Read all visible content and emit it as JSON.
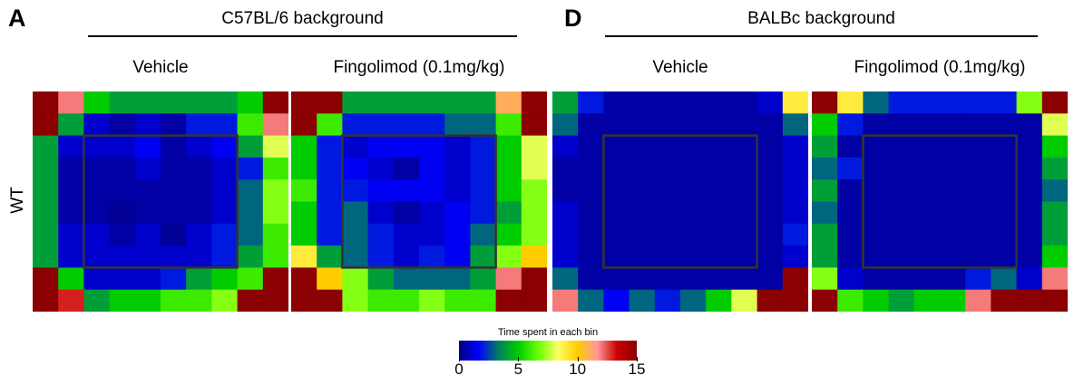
{
  "panels": [
    {
      "letter": "A",
      "title": "C57BL/6 background"
    },
    {
      "letter": "D",
      "title": "BALBc background"
    }
  ],
  "conditions": [
    "Vehicle",
    "Fingolimod (0.1mg/kg)",
    "Vehicle",
    "Fingolimod (0.1mg/kg)"
  ],
  "row_label": "WT",
  "colorbar": {
    "title": "Time spent in each bin",
    "ticks": [
      0,
      5,
      10,
      15
    ],
    "range": [
      0,
      15
    ],
    "stops": [
      "#00007f",
      "#0000ff",
      "#007f5f",
      "#00cc00",
      "#66ff00",
      "#ffff66",
      "#ffcc00",
      "#ff9999",
      "#cc0000",
      "#8b0000"
    ]
  },
  "chart_data": [
    {
      "type": "heatmap",
      "background": "C57BL/6 background",
      "condition": "Vehicle",
      "row": "WT",
      "vmin": 0,
      "vmax": 15,
      "values": [
        [
          15,
          12,
          5,
          4,
          4,
          4,
          4,
          4,
          5,
          15
        ],
        [
          15,
          4,
          1,
          0.5,
          1,
          0.5,
          2,
          2,
          6,
          12
        ],
        [
          4,
          1,
          1,
          1,
          1.5,
          0.5,
          1,
          1.5,
          4,
          8
        ],
        [
          4,
          0.5,
          0.5,
          0.5,
          1,
          0.5,
          0.5,
          1,
          2,
          6
        ],
        [
          4,
          0.5,
          0.5,
          0.5,
          0.5,
          0.5,
          0.5,
          1,
          3,
          7
        ],
        [
          4,
          0.5,
          0.5,
          0.3,
          0.5,
          0.5,
          0.5,
          1,
          3,
          7
        ],
        [
          4,
          1,
          1,
          0.5,
          1,
          0.3,
          1,
          2,
          3,
          6
        ],
        [
          4,
          1,
          1,
          1,
          1,
          1,
          1,
          2,
          4,
          6
        ],
        [
          15,
          5,
          1,
          1,
          1,
          2,
          4,
          5,
          6,
          15
        ],
        [
          15,
          13,
          4,
          5,
          5,
          6,
          6,
          7,
          15,
          15
        ]
      ]
    },
    {
      "type": "heatmap",
      "background": "C57BL/6 background",
      "condition": "Fingolimod (0.1mg/kg)",
      "row": "WT",
      "vmin": 0,
      "vmax": 15,
      "values": [
        [
          15,
          15,
          4,
          4,
          4,
          4,
          4,
          4,
          11,
          15
        ],
        [
          15,
          6,
          2,
          2,
          2,
          2,
          3,
          3,
          6,
          15
        ],
        [
          5,
          2,
          1,
          1.5,
          1.5,
          1.5,
          1,
          2,
          5,
          8
        ],
        [
          5,
          2,
          1.5,
          1,
          0.5,
          1.5,
          1,
          2,
          5,
          8
        ],
        [
          6,
          2,
          2,
          1.5,
          1.5,
          1.5,
          1,
          2,
          5,
          7
        ],
        [
          5,
          2,
          3,
          1,
          0.5,
          1,
          1.5,
          2,
          4,
          7
        ],
        [
          5,
          2,
          3,
          2,
          1,
          1,
          1.5,
          3,
          5,
          7
        ],
        [
          9,
          4,
          3,
          2,
          1,
          2,
          1.5,
          4,
          7,
          10
        ],
        [
          15,
          10,
          7,
          4,
          3,
          3,
          3,
          4,
          12,
          15
        ],
        [
          15,
          15,
          7,
          6,
          6,
          7,
          6,
          6,
          15,
          15
        ]
      ]
    },
    {
      "type": "heatmap",
      "background": "BALBc background",
      "condition": "Vehicle",
      "row": "WT",
      "vmin": 0,
      "vmax": 15,
      "values": [
        [
          4,
          2,
          0.5,
          0.5,
          0.5,
          0.5,
          0.5,
          0.5,
          1,
          9
        ],
        [
          3,
          0.5,
          0.5,
          0.5,
          0.5,
          0.5,
          0.5,
          0.5,
          0.5,
          3
        ],
        [
          1,
          0.5,
          0.5,
          0.5,
          0.5,
          0.5,
          0.5,
          0.5,
          0.5,
          1
        ],
        [
          0.5,
          0.5,
          0.5,
          0.5,
          0.5,
          0.5,
          0.5,
          0.5,
          0.5,
          1
        ],
        [
          0.5,
          0.5,
          0.5,
          0.5,
          0.5,
          0.5,
          0.5,
          0.5,
          0.5,
          1
        ],
        [
          1,
          0.5,
          0.5,
          0.5,
          0.5,
          0.5,
          0.5,
          0.5,
          0.5,
          1
        ],
        [
          1,
          0.5,
          0.5,
          0.5,
          0.5,
          0.5,
          0.5,
          0.5,
          0.5,
          2
        ],
        [
          1,
          0.5,
          0.5,
          0.5,
          0.5,
          0.5,
          0.5,
          0.5,
          0.5,
          1
        ],
        [
          3,
          0.5,
          0.5,
          0.5,
          0.5,
          0.5,
          0.5,
          0.5,
          0.5,
          15
        ],
        [
          12,
          3,
          1.5,
          3,
          2,
          3,
          5,
          8,
          15,
          15
        ]
      ]
    },
    {
      "type": "heatmap",
      "background": "BALBc background",
      "condition": "Fingolimod (0.1mg/kg)",
      "row": "WT",
      "vmin": 0,
      "vmax": 15,
      "values": [
        [
          15,
          9,
          3,
          2,
          2,
          2,
          2,
          2,
          7,
          15
        ],
        [
          5,
          2,
          0.5,
          0.5,
          0.5,
          0.5,
          0.5,
          0.5,
          0.5,
          8
        ],
        [
          4,
          0.5,
          0.5,
          0.5,
          0.5,
          0.5,
          0.5,
          0.5,
          0.5,
          5
        ],
        [
          3,
          2,
          0.5,
          0.5,
          0.5,
          0.5,
          0.5,
          0.5,
          0.5,
          4
        ],
        [
          4,
          0.5,
          0.5,
          0.5,
          0.5,
          0.5,
          0.5,
          0.5,
          0.5,
          3
        ],
        [
          3,
          0.5,
          0.5,
          0.5,
          0.5,
          0.5,
          0.5,
          0.5,
          0.5,
          4
        ],
        [
          4,
          0.5,
          0.5,
          0.5,
          0.5,
          0.5,
          0.5,
          0.5,
          0.5,
          4
        ],
        [
          4,
          0.5,
          0.5,
          0.5,
          0.5,
          0.5,
          0.5,
          0.5,
          0.5,
          5
        ],
        [
          7,
          1,
          0.5,
          0.5,
          0.5,
          0.5,
          2,
          3,
          1,
          12
        ],
        [
          15,
          6,
          5,
          4,
          5,
          5,
          12,
          15,
          15,
          15
        ]
      ]
    }
  ]
}
